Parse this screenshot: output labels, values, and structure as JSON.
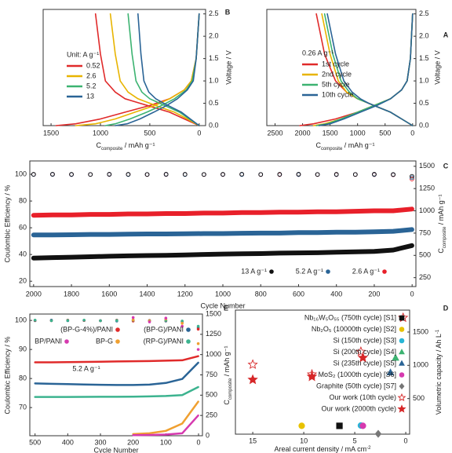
{
  "chart_data": [
    {
      "type": "line",
      "label": "A",
      "legend_title": "0.26 A g⁻¹",
      "x_label": [
        "C",
        "composite",
        " / mAh g⁻¹"
      ],
      "y_label": "Voltage / V",
      "xlim": [
        2650,
        -60
      ],
      "xticks": [
        2500,
        2000,
        1500,
        1000,
        500,
        0
      ],
      "ylim": [
        0,
        2.6
      ],
      "yticks": [
        {
          "value": 0,
          "label": "0.0"
        },
        0.5,
        {
          "value": 1,
          "label": "1.0"
        },
        1.5,
        {
          "value": 2,
          "label": "2.0"
        },
        2.5
      ],
      "series": [
        {
          "name": "1st cycle",
          "color": "#e02a2a",
          "x": [
            0,
            40,
            100,
            200,
            400,
            700,
            1000,
            1400,
            1800,
            2050,
            null,
            0,
            200,
            400,
            600,
            800,
            1000,
            1200,
            1400,
            1600,
            1750
          ],
          "values": [
            2.5,
            1.5,
            1.0,
            0.8,
            0.6,
            0.45,
            0.3,
            0.15,
            0.04,
            0.0,
            null,
            0.0,
            0.15,
            0.3,
            0.4,
            0.5,
            0.6,
            0.75,
            1.0,
            1.6,
            2.5
          ]
        },
        {
          "name": "2nd cycle",
          "color": "#e8b400",
          "x": [
            0,
            40,
            100,
            200,
            400,
            700,
            1000,
            1300,
            1600,
            1800,
            null,
            0,
            200,
            400,
            600,
            800,
            1000,
            1200,
            1350,
            1500,
            1650
          ],
          "values": [
            2.5,
            1.5,
            1.0,
            0.8,
            0.6,
            0.45,
            0.3,
            0.15,
            0.04,
            0.0,
            null,
            0.0,
            0.15,
            0.3,
            0.4,
            0.5,
            0.6,
            0.75,
            1.0,
            1.6,
            2.5
          ]
        },
        {
          "name": "5th cycle",
          "color": "#3cb371",
          "x": [
            0,
            40,
            100,
            200,
            400,
            700,
            1000,
            1300,
            1550,
            1750,
            null,
            0,
            200,
            400,
            600,
            800,
            1000,
            1150,
            1300,
            1450,
            1600
          ],
          "values": [
            2.5,
            1.5,
            1.0,
            0.8,
            0.6,
            0.45,
            0.3,
            0.15,
            0.04,
            0.0,
            null,
            0.0,
            0.15,
            0.3,
            0.4,
            0.5,
            0.6,
            0.75,
            1.0,
            1.6,
            2.5
          ]
        },
        {
          "name": "10th cycle",
          "color": "#2a6496",
          "x": [
            0,
            40,
            100,
            200,
            400,
            650,
            950,
            1250,
            1500,
            1700,
            null,
            0,
            200,
            400,
            600,
            800,
            950,
            1100,
            1250,
            1400,
            1550
          ],
          "values": [
            2.5,
            1.5,
            1.0,
            0.8,
            0.6,
            0.45,
            0.3,
            0.15,
            0.04,
            0.0,
            null,
            0.0,
            0.15,
            0.3,
            0.4,
            0.5,
            0.6,
            0.75,
            1.0,
            1.6,
            2.5
          ]
        }
      ]
    },
    {
      "type": "line",
      "label": "B",
      "legend_title": "Unit: A g⁻¹",
      "x_label": [
        "C",
        "composite",
        " / mAh g⁻¹"
      ],
      "y_label": "Voltage / V",
      "xlim": [
        1580,
        -65
      ],
      "xticks": [
        1500,
        1000,
        500,
        0
      ],
      "ylim": [
        0,
        2.6
      ],
      "yticks": [
        {
          "value": 0,
          "label": "0.0"
        },
        0.5,
        {
          "value": 1,
          "label": "1.0"
        },
        1.5,
        {
          "value": 2,
          "label": "2.0"
        },
        2.5
      ],
      "series": [
        {
          "name": "0.52",
          "color": "#e02a2a",
          "x": [
            0,
            30,
            80,
            150,
            300,
            500,
            750,
            1000,
            1250,
            1450,
            null,
            0,
            150,
            300,
            450,
            600,
            750,
            850,
            950,
            1000,
            1050
          ],
          "values": [
            2.5,
            1.5,
            1.0,
            0.8,
            0.6,
            0.45,
            0.3,
            0.15,
            0.04,
            0.0,
            null,
            0.0,
            0.15,
            0.3,
            0.4,
            0.5,
            0.6,
            0.75,
            1.0,
            1.6,
            2.5
          ]
        },
        {
          "name": "2.6",
          "color": "#e8b400",
          "x": [
            0,
            30,
            80,
            150,
            300,
            450,
            650,
            850,
            1050,
            1250,
            null,
            0,
            120,
            250,
            380,
            500,
            620,
            720,
            800,
            850,
            900
          ],
          "values": [
            2.5,
            1.5,
            1.0,
            0.8,
            0.6,
            0.45,
            0.3,
            0.15,
            0.04,
            0.0,
            null,
            0.0,
            0.15,
            0.3,
            0.4,
            0.5,
            0.6,
            0.75,
            1.0,
            1.6,
            2.5
          ]
        },
        {
          "name": "5.2",
          "color": "#3cb371",
          "x": [
            0,
            30,
            70,
            130,
            250,
            380,
            530,
            700,
            850,
            950,
            null,
            0,
            100,
            200,
            300,
            400,
            500,
            580,
            640,
            680,
            720
          ],
          "values": [
            2.5,
            1.5,
            1.0,
            0.8,
            0.6,
            0.45,
            0.3,
            0.15,
            0.04,
            0.0,
            null,
            0.0,
            0.15,
            0.3,
            0.4,
            0.5,
            0.6,
            0.75,
            1.0,
            1.6,
            2.5
          ]
        },
        {
          "name": "13",
          "color": "#2a6496",
          "x": [
            0,
            30,
            60,
            120,
            220,
            330,
            460,
            600,
            730,
            850,
            null,
            0,
            90,
            180,
            270,
            360,
            440,
            510,
            560,
            590,
            620
          ],
          "values": [
            2.5,
            1.5,
            1.0,
            0.8,
            0.6,
            0.45,
            0.3,
            0.15,
            0.04,
            0.0,
            null,
            0.0,
            0.15,
            0.3,
            0.4,
            0.5,
            0.6,
            0.75,
            1.0,
            1.6,
            2.5
          ]
        }
      ]
    },
    {
      "type": "line",
      "label": "C",
      "x_label": "Cycle Number",
      "y_label": "Coulombic Efficiency / %",
      "y2_label": [
        "C",
        "composite",
        " / mAh g⁻¹"
      ],
      "xlim": [
        2020,
        -20
      ],
      "xticks": [
        2000,
        1800,
        1600,
        1400,
        1200,
        1000,
        800,
        600,
        400,
        200,
        0
      ],
      "ylim": [
        16,
        110
      ],
      "yticks": [
        20,
        40,
        60,
        80,
        100
      ],
      "y2lim": [
        150,
        1560
      ],
      "y2ticks": [
        250,
        500,
        750,
        1000,
        1250,
        1500
      ],
      "series": [
        {
          "name": "2.6 A g⁻¹",
          "color": "#e8202a",
          "axis": "y2",
          "x": [
            1,
            100,
            200,
            300,
            400,
            500,
            600,
            700,
            800,
            900,
            1000,
            1100,
            1200,
            1300,
            1400,
            1500,
            1600,
            1700,
            1800,
            1900,
            2000
          ],
          "values": [
            1020,
            1000,
            1000,
            995,
            990,
            990,
            985,
            985,
            980,
            980,
            975,
            975,
            970,
            970,
            965,
            965,
            960,
            960,
            955,
            955,
            950
          ],
          "ce": [
            96.5,
            99.6,
            99.7,
            99.8,
            99.7,
            99.8,
            99.8,
            99.7,
            99.8,
            99.9,
            99.8,
            99.8,
            99.9,
            99.8,
            99.8,
            99.9,
            99.8,
            99.9,
            99.8,
            99.9,
            99.9
          ]
        },
        {
          "name": "5.2 A g⁻¹",
          "color": "#2a6496",
          "axis": "y2",
          "x": [
            1,
            100,
            200,
            300,
            400,
            500,
            600,
            700,
            800,
            900,
            1000,
            1100,
            1200,
            1300,
            1400,
            1500,
            1600,
            1700,
            1800,
            1900,
            2000
          ],
          "values": [
            790,
            770,
            765,
            760,
            760,
            755,
            755,
            750,
            750,
            748,
            745,
            745,
            742,
            740,
            740,
            738,
            735,
            735,
            732,
            730,
            730
          ],
          "ce": [
            97.5,
            99.7,
            99.8,
            99.9,
            99.8,
            99.9,
            99.8,
            99.9,
            99.9,
            99.8,
            99.9,
            99.9,
            99.8,
            99.9,
            99.9,
            99.8,
            99.9,
            99.9,
            99.8,
            99.9,
            99.9
          ]
        },
        {
          "name": "13 A g⁻¹",
          "color": "#111111",
          "axis": "y2",
          "x": [
            1,
            100,
            200,
            300,
            400,
            500,
            600,
            700,
            800,
            900,
            1000,
            1100,
            1200,
            1300,
            1400,
            1500,
            1600,
            1700,
            1800,
            1900,
            2000
          ],
          "values": [
            610,
            560,
            545,
            540,
            535,
            530,
            528,
            525,
            520,
            518,
            515,
            510,
            505,
            500,
            498,
            495,
            490,
            485,
            480,
            475,
            470
          ],
          "ce": [
            98.5,
            99.9,
            100.1,
            99.9,
            100.0,
            99.9,
            100.1,
            100.0,
            99.9,
            100.1,
            100.0,
            99.9,
            100.0,
            100.1,
            99.9,
            100.0,
            100.1,
            99.9,
            100.0,
            100.1,
            100.0
          ]
        }
      ]
    },
    {
      "type": "scatter",
      "label": "D",
      "x_label": [
        "Areal current density / mA cm",
        "-2",
        ""
      ],
      "y_label": [
        "Volumetric capacity / Ah L",
        "-1",
        ""
      ],
      "xlim": [
        16.7,
        -0.38
      ],
      "xticks": [
        0,
        5,
        10,
        15
      ],
      "ylim": [
        -35,
        1830
      ],
      "yticks": [
        500,
        1000,
        1500
      ],
      "series": [
        {
          "name": "Nb₁₆W₅O₅₅ (750th cycle) [S1]",
          "color": "#111111",
          "marker": "square",
          "x": [
            6.5
          ],
          "values": [
            90
          ]
        },
        {
          "name": "Nb₂O₅ (10000th cycle) [S2]",
          "color": "#e8c200",
          "marker": "circle",
          "x": [
            10.2
          ],
          "values": [
            90
          ]
        },
        {
          "name": "Si (150th cycle) [S3]",
          "color": "#29b6d6",
          "marker": "circle",
          "x": [
            4.4
          ],
          "values": [
            95
          ]
        },
        {
          "name": "Si (200th cycle) [S4]",
          "color": "#3cb371",
          "marker": "triangle",
          "x": [
            1.0
          ],
          "values": [
            1110
          ]
        },
        {
          "name": "Si (235th cycle) [S5]",
          "color": "#2a6496",
          "marker": "triangle",
          "x": [
            1.5
          ],
          "values": [
            890
          ]
        },
        {
          "name": "MoS₂ (1000th cycle) [S6]",
          "color": "#d63aaf",
          "marker": "circle",
          "x": [
            4.2
          ],
          "values": [
            90
          ]
        },
        {
          "name": "Graphite (50th cycle) [S7]",
          "color": "#777777",
          "marker": "diamond",
          "x": [
            2.7
          ],
          "values": [
            -30
          ]
        },
        {
          "name": "Our work (10th cycle)",
          "color": "#d62728",
          "marker": "star-open",
          "x": [
            0.26,
            4.4,
            9.2,
            15
          ],
          "values": [
            1716,
            1205,
            864,
            1011
          ]
        },
        {
          "name": "Our work (2000th cycle)",
          "color": "#d62728",
          "marker": "star",
          "x": [
            4.2,
            9.2,
            15
          ],
          "values": [
            1114,
            830,
            784
          ]
        }
      ]
    },
    {
      "type": "line",
      "label": "E",
      "annotation": "5.2 A g⁻¹",
      "x_label": "Cycle Number",
      "y_label": "Coulombic Efficiency / %",
      "y2_label": [
        "C",
        "composite",
        " / mAh g⁻¹"
      ],
      "xlim": [
        516,
        -12
      ],
      "xticks": [
        0,
        100,
        200,
        300,
        400,
        500
      ],
      "ylim": [
        60.3,
        102.2
      ],
      "yticks": [
        70,
        80,
        90,
        100
      ],
      "y2lim": [
        0,
        1500
      ],
      "y2ticks": [
        0,
        250,
        500,
        750,
        1000,
        1250,
        1500
      ],
      "series": [
        {
          "name": "(BP-G)/PANI",
          "color": "#2a6496",
          "axis": "y2",
          "x": [
            1,
            50,
            100,
            150,
            200,
            250,
            300,
            350,
            400,
            450,
            500
          ],
          "values": [
            900,
            700,
            650,
            630,
            625,
            625,
            628,
            632,
            636,
            640,
            645
          ],
          "ce": [
            97.5,
            99.6,
            99.8,
            99.9,
            100.1,
            99.8,
            99.9,
            100.0,
            99.9,
            100.1,
            99.9
          ]
        },
        {
          "name": "(BP-G-4%)/PANI",
          "color": "#e02a2a",
          "axis": "y2",
          "x": [
            1,
            50,
            100,
            150,
            200,
            250,
            300,
            350,
            400,
            450,
            500
          ],
          "values": [
            980,
            930,
            925,
            920,
            918,
            915,
            912,
            910,
            908,
            905,
            905
          ],
          "ce": [
            97,
            99.7,
            99.9,
            100.0,
            99.8,
            100.1,
            99.9,
            100.0,
            100.1,
            99.9,
            100.0
          ]
        },
        {
          "name": "(RP-G)/PANI",
          "color": "#3cb38f",
          "axis": "y2",
          "x": [
            1,
            50,
            100,
            150,
            200,
            250,
            300,
            350,
            400,
            450,
            500
          ],
          "values": [
            600,
            500,
            490,
            485,
            482,
            480,
            480,
            479,
            478,
            478,
            478
          ],
          "ce": [
            98,
            99.8,
            100.0,
            99.9,
            100.1,
            100.0,
            99.9,
            100.1,
            100.0,
            99.9,
            100.1
          ]
        },
        {
          "name": "BP-G",
          "color": "#f0a030",
          "axis": "y2",
          "x": [
            1,
            50,
            100,
            150,
            200
          ],
          "values": [
            420,
            150,
            60,
            30,
            20
          ],
          "ce": [
            92,
            99,
            100.5,
            99.8,
            100.2
          ]
        },
        {
          "name": "BP/PANI",
          "color": "#d63aaf",
          "axis": "y2",
          "x": [
            1,
            50,
            100,
            150,
            200
          ],
          "values": [
            250,
            30,
            15,
            10,
            8
          ],
          "ce": [
            90,
            98,
            100.8,
            99.5,
            101
          ]
        }
      ]
    }
  ]
}
